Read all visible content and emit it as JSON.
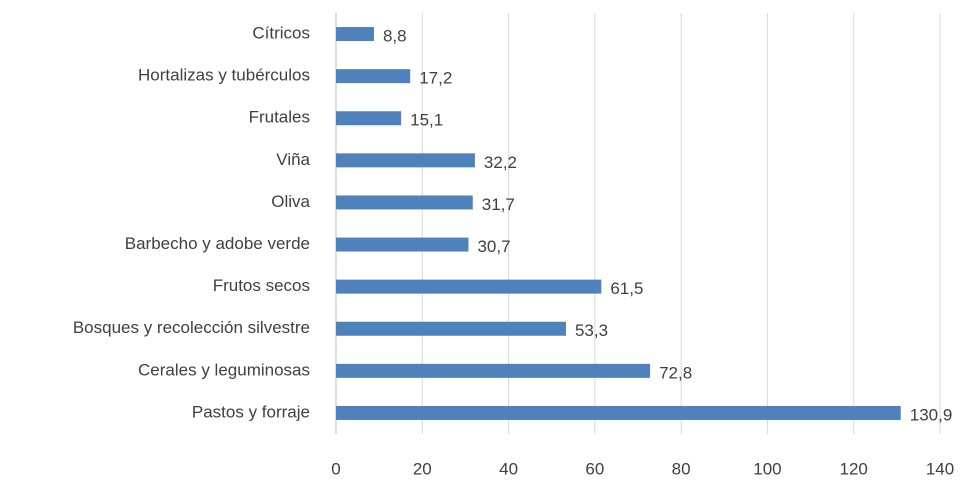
{
  "chart_data": {
    "type": "bar",
    "categories": [
      "Cítricos",
      "Hortalizas y tubérculos",
      "Frutales",
      "Viña",
      "Oliva",
      "Barbecho y adobe verde",
      "Frutos secos",
      "Bosques y recolección silvestre",
      "Cerales y leguminosas",
      "Pastos y forraje"
    ],
    "values": [
      8.8,
      17.2,
      15.1,
      32.2,
      31.7,
      30.7,
      61.5,
      53.3,
      72.8,
      130.9
    ],
    "value_labels": [
      "8,8",
      "17,2",
      "15,1",
      "32,2",
      "31,7",
      "30,7",
      "61,5",
      "53,3",
      "72,8",
      "130,9"
    ],
    "color": "#4f81bd",
    "xlim": [
      0,
      140
    ],
    "xticks": [
      0,
      20,
      40,
      60,
      80,
      100,
      120,
      140
    ],
    "grid": true
  }
}
